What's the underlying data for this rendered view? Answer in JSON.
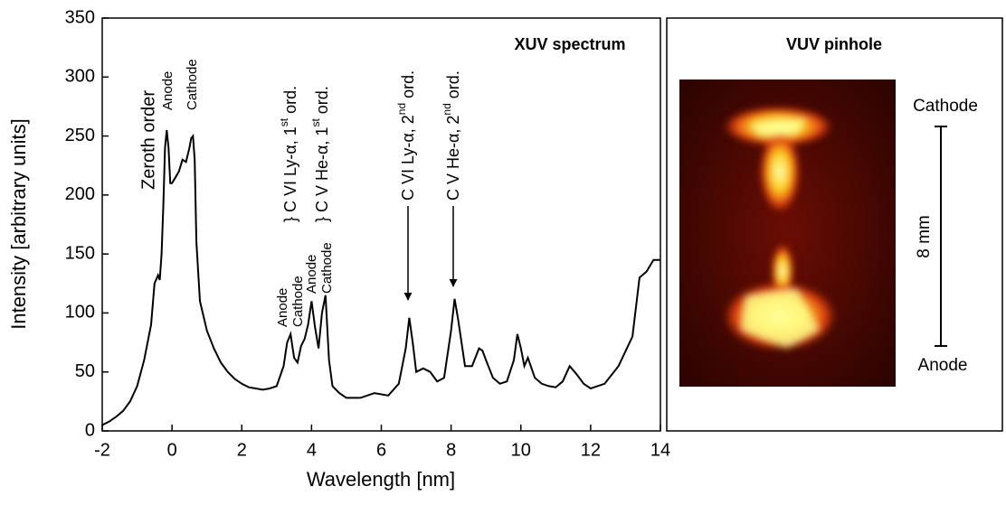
{
  "chart_data": {
    "type": "line",
    "title": "XUV spectrum",
    "x_label": "Wavelength [nm]",
    "y_label": "Intensity [arbitrary units]",
    "xlim": [
      -2,
      14
    ],
    "ylim": [
      0,
      350
    ],
    "xticks": [
      -2,
      0,
      2,
      4,
      6,
      8,
      10,
      12,
      14
    ],
    "yticks": [
      0,
      50,
      100,
      150,
      200,
      250,
      300,
      350
    ],
    "color": "#000000",
    "x": [
      -2,
      -1.8,
      -1.6,
      -1.4,
      -1.2,
      -1.0,
      -0.8,
      -0.6,
      -0.5,
      -0.4,
      -0.35,
      -0.3,
      -0.25,
      -0.2,
      -0.15,
      -0.1,
      -0.05,
      0,
      0.1,
      0.2,
      0.3,
      0.4,
      0.5,
      0.55,
      0.6,
      0.65,
      0.7,
      0.8,
      1.0,
      1.2,
      1.4,
      1.6,
      1.8,
      2.0,
      2.2,
      2.4,
      2.6,
      2.8,
      3.0,
      3.2,
      3.3,
      3.4,
      3.5,
      3.6,
      3.7,
      3.8,
      3.9,
      4.0,
      4.1,
      4.2,
      4.3,
      4.4,
      4.5,
      4.6,
      4.8,
      5.0,
      5.4,
      5.8,
      6.2,
      6.5,
      6.7,
      6.8,
      6.9,
      7.0,
      7.2,
      7.4,
      7.6,
      7.8,
      8.0,
      8.1,
      8.2,
      8.4,
      8.6,
      8.8,
      8.9,
      9.0,
      9.2,
      9.4,
      9.6,
      9.8,
      9.9,
      10.0,
      10.1,
      10.2,
      10.4,
      10.6,
      10.8,
      11.0,
      11.2,
      11.4,
      11.6,
      11.8,
      12.0,
      12.4,
      12.8,
      13.2,
      13.4,
      13.6,
      13.8,
      14.0
    ],
    "values": [
      5,
      8,
      12,
      17,
      25,
      38,
      60,
      90,
      125,
      132,
      128,
      150,
      190,
      240,
      255,
      240,
      210,
      210,
      215,
      220,
      230,
      228,
      240,
      248,
      250,
      230,
      160,
      110,
      85,
      70,
      58,
      50,
      44,
      40,
      37,
      36,
      35,
      36,
      38,
      55,
      75,
      82,
      62,
      58,
      72,
      78,
      90,
      110,
      88,
      70,
      100,
      115,
      60,
      38,
      32,
      28,
      28,
      32,
      30,
      40,
      70,
      96,
      75,
      50,
      53,
      50,
      42,
      45,
      85,
      112,
      95,
      55,
      55,
      70,
      68,
      60,
      45,
      40,
      42,
      60,
      82,
      70,
      55,
      62,
      45,
      40,
      38,
      37,
      42,
      55,
      48,
      40,
      36,
      40,
      55,
      80,
      130,
      135,
      145,
      145
    ],
    "annotations": [
      {
        "text": "Zeroth order",
        "color": "#000000"
      },
      {
        "text": "Anode",
        "color": "#ff0000"
      },
      {
        "text": "Cathode",
        "color": "#000000"
      },
      {
        "text": "Anode",
        "color": "#ff0000"
      },
      {
        "text": "Cathode",
        "color": "#000000"
      },
      {
        "text": "Anode",
        "color": "#ff0000"
      },
      {
        "text": "Cathode",
        "color": "#000000"
      }
    ],
    "line_labels": [
      {
        "brace": "}",
        "text": " C VI Ly-α, 1",
        "sup": "st",
        "tail": " ord."
      },
      {
        "brace": "}",
        "text": " C V He-α, 1",
        "sup": "st",
        "tail": " ord."
      },
      {
        "text": "C VI Ly-α, 2",
        "sup": "nd",
        "tail": " ord."
      },
      {
        "text": "C V He-α, 2",
        "sup": "nd",
        "tail": " ord."
      }
    ]
  },
  "image_panel": {
    "title": "VUV pinhole",
    "top_label": "Cathode",
    "bottom_label": "Anode",
    "bottom_color": "#ff0000",
    "scale_label": "8 mm"
  }
}
